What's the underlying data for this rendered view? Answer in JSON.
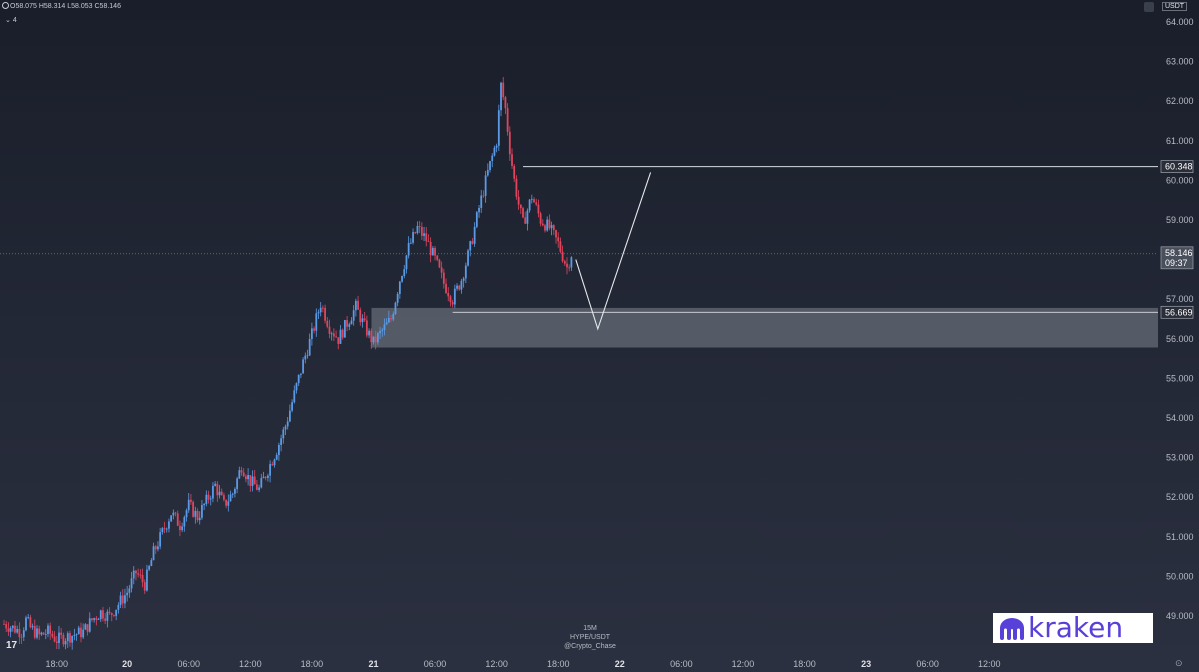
{
  "ohlc": {
    "open": "O58.075",
    "high": "H58.314",
    "low": "L58.053",
    "close": "C58.146"
  },
  "indicator_badge": "4",
  "currency": "USDT",
  "watermark": {
    "interval": "15M",
    "symbol": "HYPE/USDT",
    "author": "@Crypto_Chase"
  },
  "broker_logo": {
    "text": "kraken",
    "icon": "kraken-octopus-icon"
  },
  "tv_logo": "17",
  "colors": {
    "up": "#5b9be6",
    "down": "#e0455e",
    "background": "#1e2230",
    "zone": "#7e838e"
  },
  "chart_data": {
    "type": "candlestick",
    "symbol": "HYPE/USDT",
    "interval": "15M",
    "ylim": [
      48.4,
      64.4
    ],
    "y_ticks": [
      "64.000",
      "63.000",
      "62.000",
      "61.000",
      "60.000",
      "59.000",
      "57.000",
      "56.000",
      "55.000",
      "54.000",
      "53.000",
      "52.000",
      "51.000",
      "50.000",
      "49.000"
    ],
    "x_ticks": [
      {
        "label": "18:00",
        "day": false
      },
      {
        "label": "20",
        "day": true
      },
      {
        "label": "06:00",
        "day": false
      },
      {
        "label": "12:00",
        "day": false
      },
      {
        "label": "18:00",
        "day": false
      },
      {
        "label": "21",
        "day": true
      },
      {
        "label": "06:00",
        "day": false
      },
      {
        "label": "12:00",
        "day": false
      },
      {
        "label": "18:00",
        "day": false
      },
      {
        "label": "22",
        "day": true
      },
      {
        "label": "06:00",
        "day": false
      },
      {
        "label": "12:00",
        "day": false
      },
      {
        "label": "18:00",
        "day": false
      },
      {
        "label": "23",
        "day": true
      },
      {
        "label": "06:00",
        "day": false
      },
      {
        "label": "12:00",
        "day": false
      }
    ],
    "price_markers": [
      {
        "value": "60.348",
        "kind": "level"
      },
      {
        "value": "58.146",
        "sub": "09:37",
        "kind": "last"
      },
      {
        "value": "56.669",
        "kind": "level"
      }
    ],
    "close_path": [
      [
        0,
        48.8
      ],
      [
        2,
        48.7
      ],
      [
        4,
        48.6
      ],
      [
        5,
        48.9
      ],
      [
        6,
        48.7
      ],
      [
        8,
        48.5
      ],
      [
        10,
        48.6
      ],
      [
        12,
        48.4
      ],
      [
        18,
        48.6
      ],
      [
        20,
        48.9
      ],
      [
        22,
        49.1
      ],
      [
        24,
        49.0
      ],
      [
        26,
        49.3
      ],
      [
        28,
        49.6
      ],
      [
        30,
        50.1
      ],
      [
        32,
        49.8
      ],
      [
        34,
        50.6
      ],
      [
        36,
        51.1
      ],
      [
        38,
        51.6
      ],
      [
        40,
        51.3
      ],
      [
        42,
        51.8
      ],
      [
        44,
        51.5
      ],
      [
        46,
        51.9
      ],
      [
        48,
        52.3
      ],
      [
        50,
        51.8
      ],
      [
        52,
        52.1
      ],
      [
        54,
        52.8
      ],
      [
        56,
        52.4
      ],
      [
        58,
        52.2
      ],
      [
        60,
        52.7
      ],
      [
        62,
        53.2
      ],
      [
        64,
        53.8
      ],
      [
        66,
        54.6
      ],
      [
        68,
        55.4
      ],
      [
        70,
        56.1
      ],
      [
        72,
        56.9
      ],
      [
        74,
        56.3
      ],
      [
        76,
        56.0
      ],
      [
        78,
        56.4
      ],
      [
        80,
        56.8
      ],
      [
        82,
        56.3
      ],
      [
        84,
        55.9
      ],
      [
        86,
        56.2
      ],
      [
        88,
        56.5
      ],
      [
        90,
        57.5
      ],
      [
        92,
        58.3
      ],
      [
        94,
        58.8
      ],
      [
        96,
        58.5
      ],
      [
        98,
        58.0
      ],
      [
        100,
        57.4
      ],
      [
        102,
        57.0
      ],
      [
        104,
        57.5
      ],
      [
        106,
        58.3
      ],
      [
        108,
        59.3
      ],
      [
        110,
        60.2
      ],
      [
        112,
        61.0
      ],
      [
        113,
        62.4
      ],
      [
        114,
        61.8
      ],
      [
        115,
        60.8
      ],
      [
        116,
        60.0
      ],
      [
        117,
        59.4
      ],
      [
        118,
        58.9
      ],
      [
        120,
        59.6
      ],
      [
        122,
        59.0
      ],
      [
        124,
        58.8
      ],
      [
        126,
        58.4
      ],
      [
        128,
        57.8
      ],
      [
        129,
        58.146
      ]
    ],
    "x_span": [
      0,
      256
    ],
    "x_ticks_pos": [
      12,
      28,
      42,
      56,
      70,
      84,
      98,
      112,
      126,
      140,
      154,
      168,
      182,
      196,
      210,
      224
    ],
    "resistance": {
      "value": 60.348,
      "x_start": 118
    },
    "support": {
      "value": 56.669,
      "x_start": 102
    },
    "demand_zone": {
      "low": 55.78,
      "high": 56.78,
      "x_start": 84
    },
    "projection": [
      [
        130,
        58.0
      ],
      [
        135,
        56.25
      ],
      [
        147,
        60.2
      ]
    ]
  }
}
